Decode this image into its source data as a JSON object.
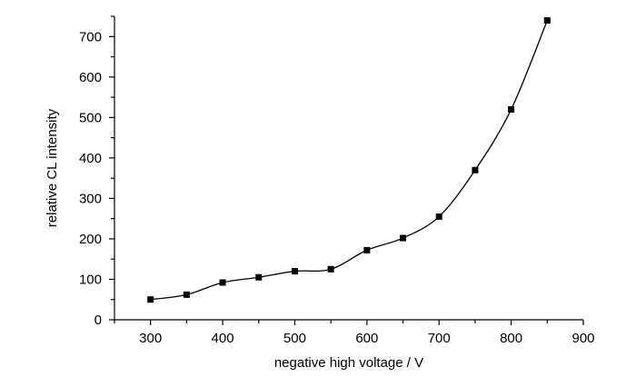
{
  "chart_data": {
    "type": "scatter",
    "xlabel": "negative high voltage / V",
    "ylabel": "relative CL intensity",
    "xlim": [
      250,
      900
    ],
    "ylim": [
      0,
      750
    ],
    "xticks": [
      300,
      400,
      500,
      600,
      700,
      800,
      900
    ],
    "yticks": [
      0,
      100,
      200,
      300,
      400,
      500,
      600,
      700
    ],
    "grid": false,
    "legend": "none",
    "marker": "square",
    "smooth_line": true,
    "color": "#000000",
    "series": [
      {
        "x": [
          300,
          350,
          400,
          450,
          500,
          550,
          600,
          650,
          700,
          750,
          800,
          850
        ],
        "y": [
          50,
          62,
          92,
          105,
          120,
          125,
          172,
          202,
          255,
          370,
          520,
          740
        ]
      }
    ]
  }
}
